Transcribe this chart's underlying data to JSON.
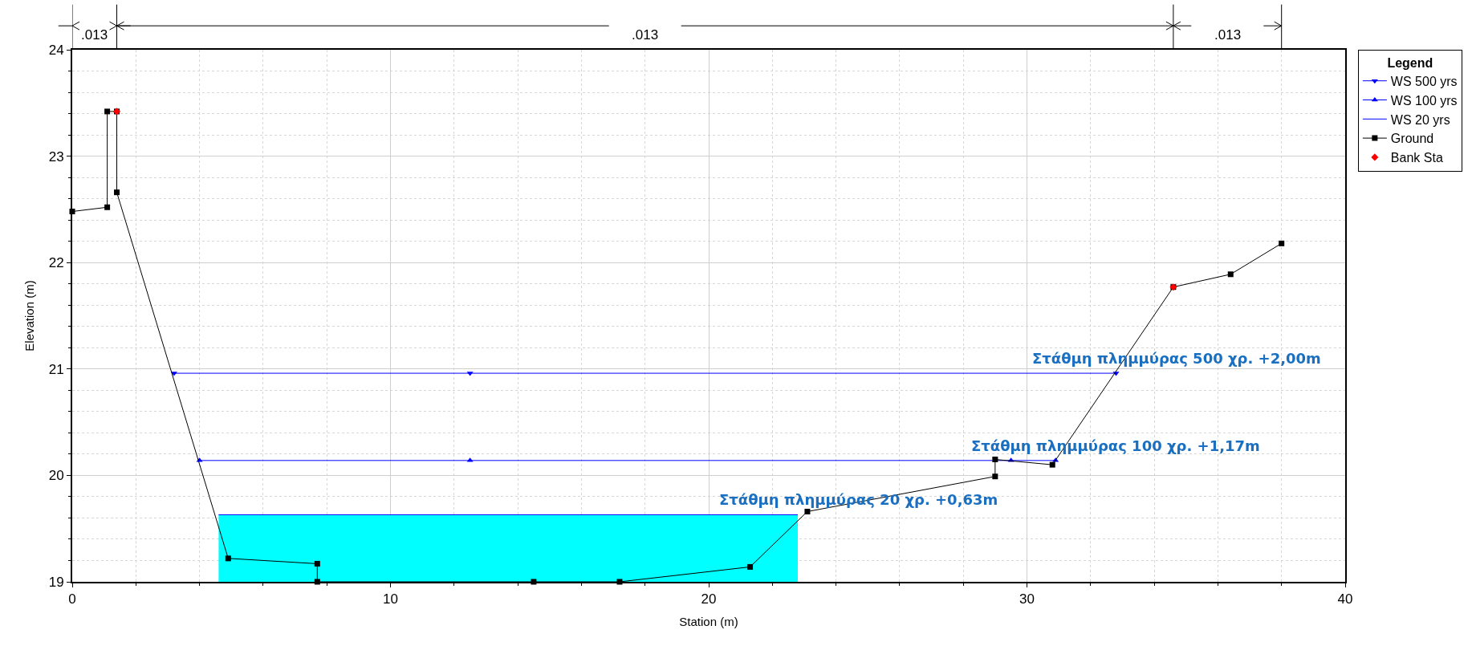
{
  "chart_data": {
    "type": "line",
    "xlabel": "Station (m)",
    "ylabel": "Elevation (m)",
    "legend_title": "Legend",
    "legend": "right",
    "grid": true,
    "xlim": [
      0,
      40
    ],
    "xticks": [
      0,
      10,
      20,
      30,
      40
    ],
    "ylim": [
      19,
      24
    ],
    "yticks": [
      19,
      20,
      21,
      22,
      23,
      24
    ],
    "series": [
      {
        "name": "WS 500 yrs",
        "color": "#0000ff",
        "marker": "triangle-down",
        "x": [
          3.2,
          12.5,
          32.8
        ],
        "values": [
          20.96,
          20.96,
          20.96
        ]
      },
      {
        "name": "WS 100 yrs",
        "color": "#0000ff",
        "marker": "triangle",
        "x": [
          4.0,
          12.5,
          29.5,
          30.9
        ],
        "values": [
          20.14,
          20.14,
          20.14,
          20.14
        ]
      },
      {
        "name": "WS 20 yrs",
        "type": "area",
        "color": "#0000ff",
        "marker": "none",
        "x": [
          4.6,
          22.8
        ],
        "values": [
          19.63,
          19.63
        ]
      },
      {
        "name": "Ground",
        "color": "#000000",
        "marker": "square",
        "x": [
          0,
          1.1,
          1.1,
          1.4,
          1.4,
          4.9,
          7.7,
          7.7,
          14.5,
          17.2,
          21.3,
          23.1,
          29.0,
          29.0,
          30.8,
          34.6,
          36.4,
          38.0
        ],
        "values": [
          22.48,
          22.52,
          23.42,
          23.42,
          22.66,
          19.22,
          19.17,
          19.0,
          19.0,
          19.0,
          19.14,
          19.66,
          19.99,
          20.15,
          20.1,
          21.77,
          21.89,
          22.18
        ]
      },
      {
        "name": "Bank Sta",
        "type": "scatter",
        "color": "#ff0000",
        "marker": "diamond",
        "x": [
          1.4,
          34.6
        ],
        "values": [
          23.42,
          21.77
        ]
      }
    ],
    "annotations": [
      ".013",
      ".013",
      ".013",
      "Στάθμη πλημμύρας 500 χρ. +2,00m",
      "Στάθμη πλημμύρας 100 χρ. +1,17m",
      "Στάθμη πλημμύρας 20 χρ. +0,63m"
    ]
  }
}
